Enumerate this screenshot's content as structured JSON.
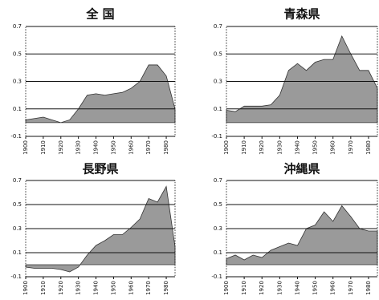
{
  "chart_data": [
    {
      "type": "area",
      "title": "全 国",
      "x": [
        1900,
        1905,
        1910,
        1915,
        1920,
        1925,
        1930,
        1935,
        1940,
        1945,
        1950,
        1955,
        1960,
        1965,
        1970,
        1975,
        1980,
        1985
      ],
      "values": [
        0.02,
        0.03,
        0.04,
        0.02,
        0.0,
        0.02,
        0.1,
        0.2,
        0.21,
        0.2,
        0.21,
        0.22,
        0.25,
        0.3,
        0.42,
        0.42,
        0.34,
        0.1
      ],
      "color": "#9a9a9a",
      "xlim": [
        1900,
        1985
      ],
      "ylim": [
        -0.1,
        0.7
      ],
      "xticks": [
        1900,
        1910,
        1920,
        1930,
        1940,
        1950,
        1960,
        1970,
        1980
      ],
      "yticks": [
        -0.1,
        0.1,
        0.3,
        0.5,
        0.7
      ],
      "grid": true
    },
    {
      "type": "area",
      "title": "青森県",
      "x": [
        1900,
        1905,
        1910,
        1915,
        1920,
        1925,
        1930,
        1935,
        1940,
        1945,
        1950,
        1955,
        1960,
        1965,
        1970,
        1975,
        1980,
        1985
      ],
      "values": [
        0.09,
        0.08,
        0.12,
        0.12,
        0.12,
        0.13,
        0.2,
        0.38,
        0.43,
        0.38,
        0.44,
        0.46,
        0.46,
        0.63,
        0.5,
        0.38,
        0.38,
        0.25
      ],
      "color": "#9a9a9a",
      "xlim": [
        1900,
        1985
      ],
      "ylim": [
        -0.1,
        0.7
      ],
      "xticks": [
        1900,
        1910,
        1920,
        1930,
        1940,
        1950,
        1960,
        1970,
        1980
      ],
      "yticks": [
        -0.1,
        0.1,
        0.3,
        0.5,
        0.7
      ],
      "grid": true
    },
    {
      "type": "area",
      "title": "長野県",
      "x": [
        1900,
        1905,
        1910,
        1915,
        1920,
        1925,
        1930,
        1935,
        1940,
        1945,
        1950,
        1955,
        1960,
        1965,
        1970,
        1975,
        1980,
        1985
      ],
      "values": [
        -0.02,
        -0.03,
        -0.03,
        -0.03,
        -0.04,
        -0.06,
        -0.02,
        0.08,
        0.16,
        0.2,
        0.25,
        0.25,
        0.31,
        0.38,
        0.55,
        0.52,
        0.65,
        0.15
      ],
      "color": "#9a9a9a",
      "xlim": [
        1900,
        1985
      ],
      "ylim": [
        -0.1,
        0.7
      ],
      "xticks": [
        1900,
        1910,
        1920,
        1930,
        1940,
        1950,
        1960,
        1970,
        1980
      ],
      "yticks": [
        -0.1,
        0.1,
        0.3,
        0.5,
        0.7
      ],
      "grid": true
    },
    {
      "type": "area",
      "title": "沖縄県",
      "x": [
        1900,
        1905,
        1910,
        1915,
        1920,
        1925,
        1930,
        1935,
        1940,
        1945,
        1950,
        1955,
        1960,
        1965,
        1970,
        1975,
        1980,
        1985
      ],
      "values": [
        0.05,
        0.08,
        0.04,
        0.08,
        0.06,
        0.12,
        0.15,
        0.18,
        0.16,
        0.3,
        0.33,
        0.44,
        0.36,
        0.49,
        0.4,
        0.3,
        0.28,
        0.28
      ],
      "color": "#9a9a9a",
      "xlim": [
        1900,
        1985
      ],
      "ylim": [
        -0.1,
        0.7
      ],
      "xticks": [
        1900,
        1910,
        1920,
        1930,
        1940,
        1950,
        1960,
        1970,
        1980
      ],
      "yticks": [
        -0.1,
        0.1,
        0.3,
        0.5,
        0.7
      ],
      "grid": true
    }
  ]
}
